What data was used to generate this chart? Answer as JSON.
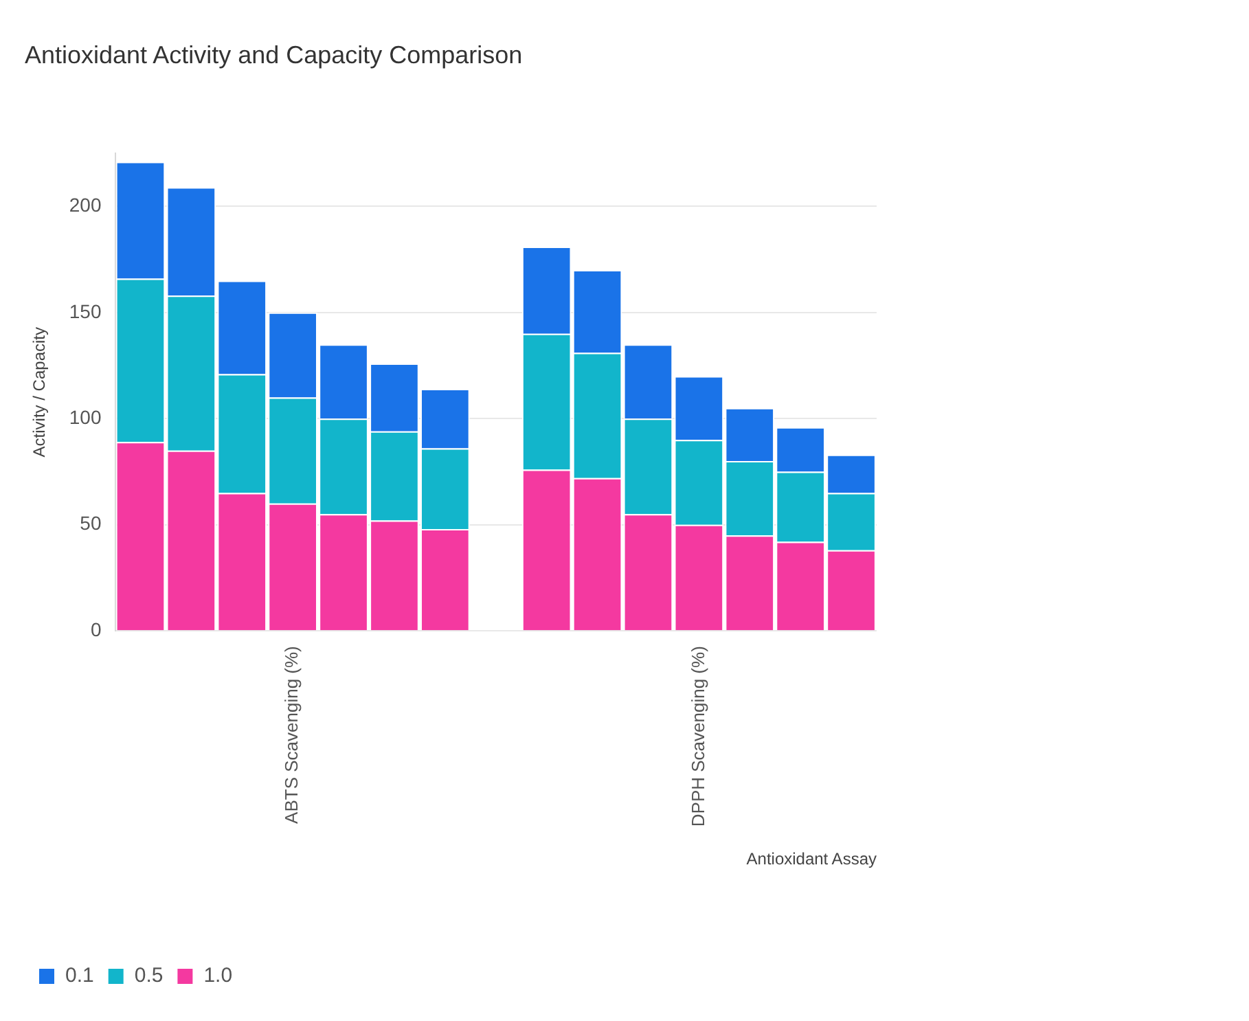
{
  "chart_data": {
    "type": "bar",
    "title": "Antioxidant Activity and Capacity Comparison",
    "xlabel": "Antioxidant Assay",
    "ylabel": "Activity / Capacity",
    "categories": [
      null,
      null,
      null,
      "ABTS Scavenging (%)",
      null,
      null,
      null,
      null,
      null,
      null,
      null,
      "DPPH Scavenging (%)",
      null,
      null,
      null
    ],
    "stacked": true,
    "ylim": [
      0,
      225
    ],
    "yticks": [
      0,
      50,
      100,
      150,
      200
    ],
    "grid": "y",
    "legend": "bottom left",
    "series": [
      {
        "name": "1.0",
        "color": "#f439a0",
        "values": [
          89,
          85,
          65,
          60,
          55,
          52,
          48,
          null,
          76,
          72,
          55,
          50,
          45,
          42,
          38
        ]
      },
      {
        "name": "0.5",
        "color": "#12b5cb",
        "values": [
          77,
          73,
          56,
          50,
          45,
          42,
          38,
          null,
          64,
          59,
          45,
          40,
          35,
          33,
          27
        ]
      },
      {
        "name": "0.1",
        "color": "#1a73e8",
        "values": [
          55,
          51,
          44,
          40,
          35,
          32,
          28,
          null,
          41,
          39,
          35,
          30,
          25,
          21,
          18
        ]
      }
    ]
  }
}
